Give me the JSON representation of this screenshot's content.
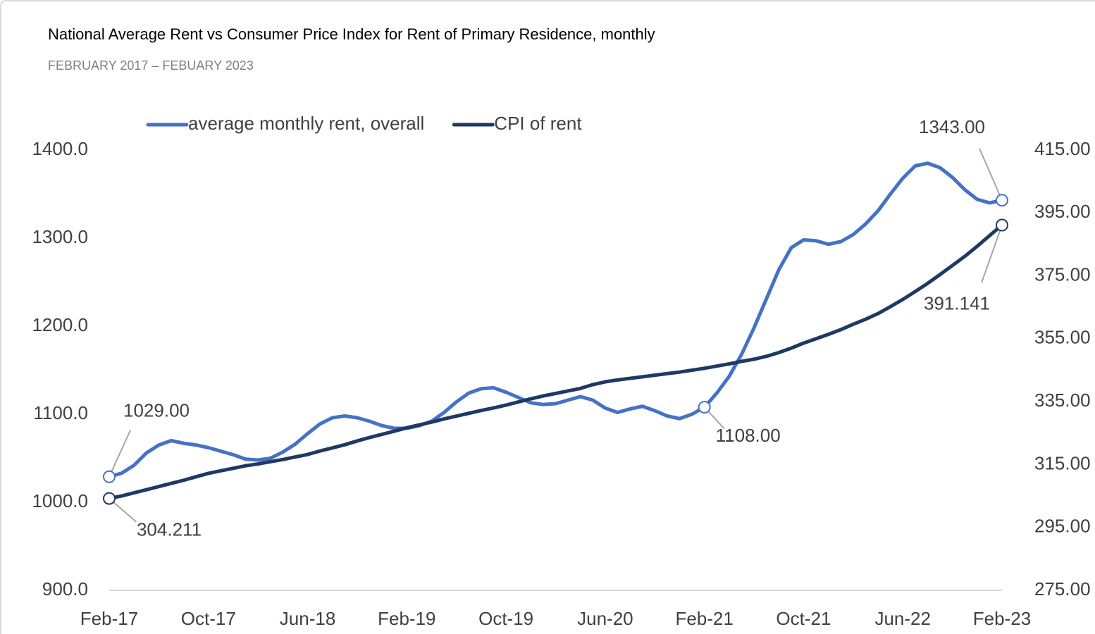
{
  "chart_data": {
    "type": "line",
    "title": "National Average Rent vs Consumer Price Index for Rent of Primary Residence, monthly",
    "subtitle": "FEBRUARY 2017 – FEBUARY 2023",
    "categories": [
      "Feb-17",
      null,
      null,
      null,
      null,
      null,
      null,
      null,
      "Oct-17",
      null,
      null,
      null,
      null,
      null,
      null,
      null,
      "Jun-18",
      null,
      null,
      null,
      null,
      null,
      null,
      null,
      "Feb-19",
      null,
      null,
      null,
      null,
      null,
      null,
      null,
      "Oct-19",
      null,
      null,
      null,
      null,
      null,
      null,
      null,
      "Jun-20",
      null,
      null,
      null,
      null,
      null,
      null,
      null,
      "Feb-21",
      null,
      null,
      null,
      null,
      null,
      null,
      null,
      "Oct-21",
      null,
      null,
      null,
      null,
      null,
      null,
      null,
      "Jun-22",
      null,
      null,
      null,
      null,
      null,
      null,
      null,
      "Feb-23"
    ],
    "ylim": [
      900,
      1400
    ],
    "yticks": [
      {
        "value": 900,
        "label": "900.0"
      },
      {
        "value": 1000,
        "label": "1000.0"
      },
      {
        "value": 1100,
        "label": "1100.0"
      },
      {
        "value": 1200,
        "label": "1200.0"
      },
      {
        "value": 1300,
        "label": "1300.0"
      },
      {
        "value": 1400,
        "label": "1400.0"
      }
    ],
    "y2lim": [
      275,
      415
    ],
    "y2ticks": [
      {
        "value": 275,
        "label": "275.00"
      },
      {
        "value": 295,
        "label": "295.00"
      },
      {
        "value": 315,
        "label": "315.00"
      },
      {
        "value": 335,
        "label": "335.00"
      },
      {
        "value": 355,
        "label": "355.00"
      },
      {
        "value": 375,
        "label": "375.00"
      },
      {
        "value": 395,
        "label": "395.00"
      },
      {
        "value": 415,
        "label": "415.00"
      }
    ],
    "grid": false,
    "legend": "top",
    "series": [
      {
        "name": "average monthly rent, overall",
        "color": "#4472c4",
        "axis": "y",
        "values": [
          1029,
          1033,
          1042,
          1056,
          1065,
          1070,
          1067,
          1065,
          1062,
          1058,
          1054,
          1049,
          1048,
          1050,
          1057,
          1066,
          1078,
          1089,
          1096,
          1098,
          1096,
          1092,
          1087,
          1084,
          1084,
          1087,
          1092,
          1102,
          1114,
          1124,
          1129,
          1130,
          1125,
          1119,
          1113,
          1111,
          1112,
          1116,
          1120,
          1116,
          1107,
          1102,
          1106,
          1109,
          1104,
          1098,
          1095,
          1100,
          1108,
          1124,
          1143,
          1168,
          1198,
          1231,
          1264,
          1289,
          1298,
          1297,
          1293,
          1296,
          1304,
          1316,
          1331,
          1350,
          1368,
          1382,
          1385,
          1380,
          1369,
          1355,
          1344,
          1340,
          1343
        ],
        "value_labels": [
          "1029.00",
          null,
          null,
          null,
          null,
          null,
          null,
          null,
          null,
          null,
          null,
          null,
          null,
          null,
          null,
          null,
          null,
          null,
          null,
          null,
          null,
          null,
          null,
          null,
          null,
          null,
          null,
          null,
          null,
          null,
          null,
          null,
          null,
          null,
          null,
          null,
          null,
          null,
          null,
          null,
          null,
          null,
          null,
          null,
          null,
          null,
          null,
          null,
          "1108.00",
          null,
          null,
          null,
          null,
          null,
          null,
          null,
          null,
          null,
          null,
          null,
          null,
          null,
          null,
          null,
          null,
          null,
          null,
          null,
          null,
          null,
          null,
          null,
          "1343.00"
        ]
      },
      {
        "name": "CPI of rent",
        "color": "#1f3864",
        "axis": "y2",
        "values": [
          304.211,
          305.0,
          306.0,
          307.0,
          308.0,
          309.0,
          310.0,
          311.1,
          312.2,
          313.0,
          313.8,
          314.6,
          315.2,
          315.9,
          316.6,
          317.4,
          318.2,
          319.3,
          320.3,
          321.3,
          322.5,
          323.6,
          324.6,
          325.6,
          326.7,
          327.6,
          328.5,
          329.5,
          330.4,
          331.3,
          332.2,
          333.0,
          333.9,
          334.9,
          335.9,
          336.8,
          337.6,
          338.4,
          339.2,
          340.4,
          341.3,
          341.9,
          342.4,
          342.9,
          343.4,
          343.9,
          344.4,
          345.0,
          345.6,
          346.3,
          347.0,
          347.8,
          348.5,
          349.4,
          350.6,
          352.0,
          353.6,
          355.0,
          356.4,
          357.9,
          359.6,
          361.2,
          363.0,
          365.2,
          367.5,
          370.0,
          372.6,
          375.4,
          378.3,
          381.2,
          384.4,
          387.8,
          391.141
        ],
        "value_labels": [
          "304.211",
          null,
          null,
          null,
          null,
          null,
          null,
          null,
          null,
          null,
          null,
          null,
          null,
          null,
          null,
          null,
          null,
          null,
          null,
          null,
          null,
          null,
          null,
          null,
          null,
          null,
          null,
          null,
          null,
          null,
          null,
          null,
          null,
          null,
          null,
          null,
          null,
          null,
          null,
          null,
          null,
          null,
          null,
          null,
          null,
          null,
          null,
          null,
          null,
          null,
          null,
          null,
          null,
          null,
          null,
          null,
          null,
          null,
          null,
          null,
          null,
          null,
          null,
          null,
          null,
          null,
          null,
          null,
          null,
          null,
          null,
          null,
          "391.141"
        ]
      }
    ]
  }
}
